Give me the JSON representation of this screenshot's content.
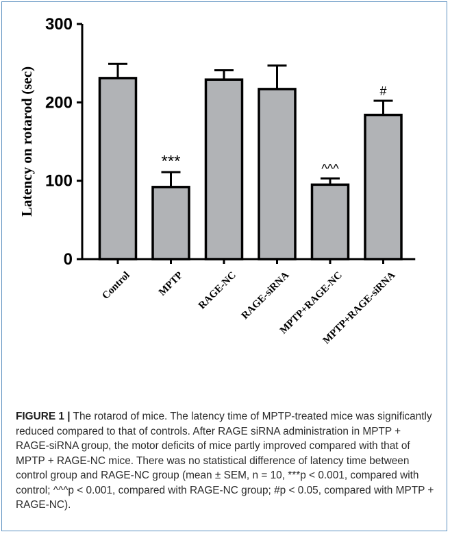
{
  "chart_data": {
    "type": "bar",
    "categories": [
      "Control",
      "MPTP",
      "RAGE-NC",
      "RAGE-siRNA",
      "MPTP+RAGE-NC",
      "MPTP+RAGE-siRNA"
    ],
    "values": [
      231,
      92,
      229,
      217,
      95,
      184
    ],
    "errors": [
      18,
      19,
      12,
      30,
      8,
      18
    ],
    "annotations": [
      "",
      "***",
      "",
      "",
      "^^^",
      "#"
    ],
    "ylabel": "Latency on rotarod (sec)",
    "ylim": [
      0,
      300
    ],
    "yticks": [
      0,
      100,
      200,
      300
    ],
    "bar_color": "#b1b3b6",
    "grid": false
  },
  "caption": {
    "label": "FIGURE 1 |",
    "text": " The rotarod of mice. The latency time of MPTP-treated mice was significantly reduced compared to that of controls. After RAGE siRNA administration in MPTP + RAGE-siRNA group, the motor deficits of mice partly improved compared with that of MPTP + RAGE-NC mice. There was no statistical difference of latency time between control group and RAGE-NC group (mean ± SEM, n = 10, ***p < 0.001, compared with control; ^^^p < 0.001, compared with RAGE-NC group; #p < 0.05, compared with MPTP + RAGE-NC)."
  }
}
